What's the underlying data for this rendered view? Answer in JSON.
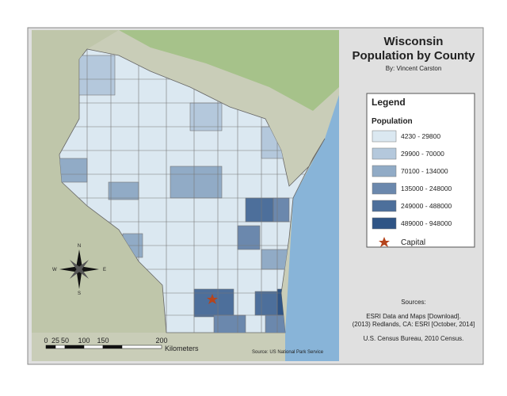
{
  "header": {
    "title": [
      "Wisconsin",
      "Population by County"
    ],
    "author": "By: Vincent Carston"
  },
  "legend": {
    "title": "Legend",
    "subtitle": "Population",
    "classes": [
      {
        "label": "4230 - 29800",
        "color": "#dbe8f1"
      },
      {
        "label": "29900 - 70000",
        "color": "#b4c8dc"
      },
      {
        "label": "70100 - 134000",
        "color": "#91abc6"
      },
      {
        "label": "135000 - 248000",
        "color": "#6b88ad"
      },
      {
        "label": "249000 - 488000",
        "color": "#4d6f9b"
      },
      {
        "label": "489000 - 948000",
        "color": "#2f5485"
      }
    ],
    "capital": {
      "label": "Capital",
      "color": "#b5441c"
    }
  },
  "sources": {
    "heading": "Sources:",
    "lines": [
      "ESRI Data and Maps [Download].",
      "(2013) Redlands, CA: ESRI [October, 2014]",
      "U.S. Census Bureau, 2010 Census."
    ]
  },
  "scale": {
    "labels": [
      "0",
      "25",
      "50",
      "100",
      "150",
      "200"
    ],
    "unit": "Kilometers"
  },
  "compass": {
    "north": "N",
    "south": "S",
    "east": "E",
    "west": "W"
  },
  "credit": "Source: US National Park Service"
}
